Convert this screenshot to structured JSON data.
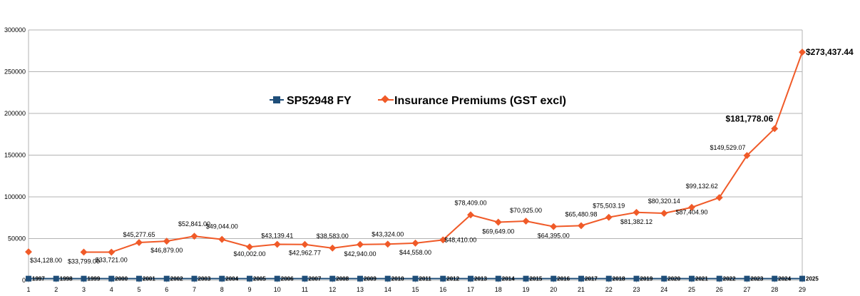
{
  "chart_data": {
    "type": "line",
    "x": [
      "1",
      "2",
      "3",
      "4",
      "5",
      "6",
      "7",
      "8",
      "9",
      "10",
      "11",
      "12",
      "13",
      "14",
      "15",
      "16",
      "17",
      "18",
      "19",
      "20",
      "21",
      "22",
      "23",
      "24",
      "25",
      "26",
      "27",
      "28",
      "29"
    ],
    "ylim": [
      0,
      300000
    ],
    "yticks": [
      "0",
      "50000",
      "100000",
      "150000",
      "200000",
      "250000",
      "300000"
    ],
    "grid": true,
    "legend_position": "center",
    "colors": {
      "fy": "#1f4e79",
      "premiums": "#f05a28"
    },
    "series": [
      {
        "name": "SP52948 FY",
        "values": [
          1997,
          1998,
          1999,
          2000,
          2001,
          2002,
          2003,
          2004,
          2005,
          2006,
          2007,
          2008,
          2009,
          2010,
          2011,
          2012,
          2013,
          2014,
          2015,
          2016,
          2017,
          2018,
          2019,
          2020,
          2021,
          2022,
          2023,
          2024,
          2025
        ],
        "labels": [
          "1997",
          "1998",
          "1999",
          "2000",
          "2001",
          "2002",
          "2003",
          "2004",
          "2005",
          "2006",
          "2007",
          "2008",
          "2009",
          "2010",
          "2011",
          "2012",
          "2013",
          "2014",
          "2015",
          "2016",
          "2017",
          "2018",
          "2019",
          "2020",
          "2021",
          "2022",
          "2023",
          "2024",
          "2025"
        ]
      },
      {
        "name": "Insurance Premiums (GST excl)",
        "values": [
          34128.0,
          null,
          33799.0,
          33721.0,
          45277.65,
          46879.0,
          52841.0,
          49044.0,
          40002.0,
          43139.41,
          42962.77,
          38583.0,
          42940.0,
          43324.0,
          44558.0,
          48410.0,
          78409.0,
          69649.0,
          70925.0,
          64395.0,
          65480.98,
          75503.19,
          81382.12,
          80320.14,
          87404.9,
          99132.62,
          149529.07,
          181778.06,
          273437.44
        ],
        "labels": [
          "$34,128.00",
          "",
          "$33,799.00",
          "$33,721.00",
          "$45,277.65",
          "$46,879.00",
          "$52,841.00",
          "$49,044.00",
          "$40,002.00",
          "$43,139.41",
          "$42,962.77",
          "$38,583.00",
          "$42,940.00",
          "$43,324.00",
          "$44,558.00",
          "$48,410.00",
          "$78,409.00",
          "$69,649.00",
          "$70,925.00",
          "$64,395.00",
          "$65,480.98",
          "$75,503.19",
          "$81,382.12",
          "$80,320.14",
          "$87,404.90",
          "$99,132.62",
          "$149,529.07",
          "$181,778.06",
          "$273,437.44"
        ]
      }
    ]
  }
}
